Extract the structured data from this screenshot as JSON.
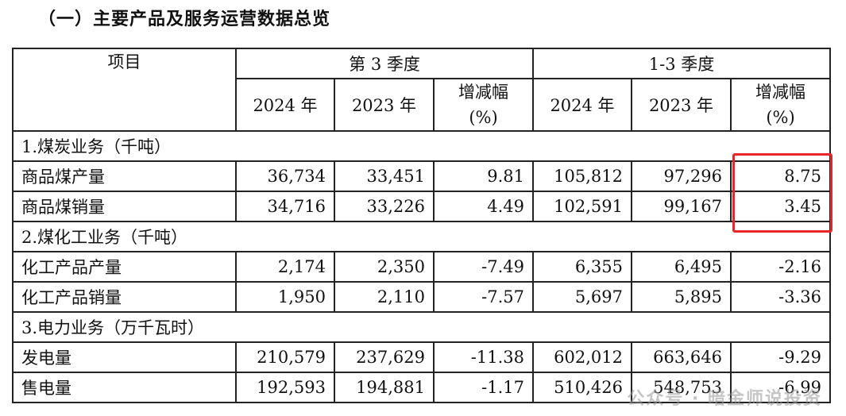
{
  "title": "（一）主要产品及服务运营数据总览",
  "headers": {
    "item": "项目",
    "q3": "第 3 季度",
    "q13": "1-3 季度",
    "y2024": "2024 年",
    "y2023": "2023 年",
    "change_line1": "增减幅",
    "change_line2": "(%)"
  },
  "sections": [
    {
      "title": "1.煤炭业务（千吨）",
      "rows": [
        {
          "label": "商品煤产量",
          "q3_2024": "36,734",
          "q3_2023": "33,451",
          "q3_chg": "9.81",
          "ytd_2024": "105,812",
          "ytd_2023": "97,296",
          "ytd_chg": "8.75"
        },
        {
          "label": "商品煤销量",
          "q3_2024": "34,716",
          "q3_2023": "33,226",
          "q3_chg": "4.49",
          "ytd_2024": "102,591",
          "ytd_2023": "99,167",
          "ytd_chg": "3.45"
        }
      ]
    },
    {
      "title": "2.煤化工业务（千吨）",
      "rows": [
        {
          "label": "化工产品产量",
          "q3_2024": "2,174",
          "q3_2023": "2,350",
          "q3_chg": "-7.49",
          "ytd_2024": "6,355",
          "ytd_2023": "6,495",
          "ytd_chg": "-2.16"
        },
        {
          "label": "化工产品销量",
          "q3_2024": "1,950",
          "q3_2023": "2,110",
          "q3_chg": "-7.57",
          "ytd_2024": "5,697",
          "ytd_2023": "5,895",
          "ytd_chg": "-3.36"
        }
      ]
    },
    {
      "title": "3.电力业务（万千瓦时）",
      "rows": [
        {
          "label": "发电量",
          "q3_2024": "210,579",
          "q3_2023": "237,629",
          "q3_chg": "-11.38",
          "ytd_2024": "602,012",
          "ytd_2023": "663,646",
          "ytd_chg": "-9.29"
        },
        {
          "label": "售电量",
          "q3_2024": "192,593",
          "q3_2023": "194,881",
          "q3_chg": "-1.17",
          "ytd_2024": "510,426",
          "ytd_2023": "548,753",
          "ytd_chg": "-6.99"
        }
      ]
    }
  ],
  "watermark": "公众号 · 暗金师说投资",
  "highlight_color": "#e8262a"
}
